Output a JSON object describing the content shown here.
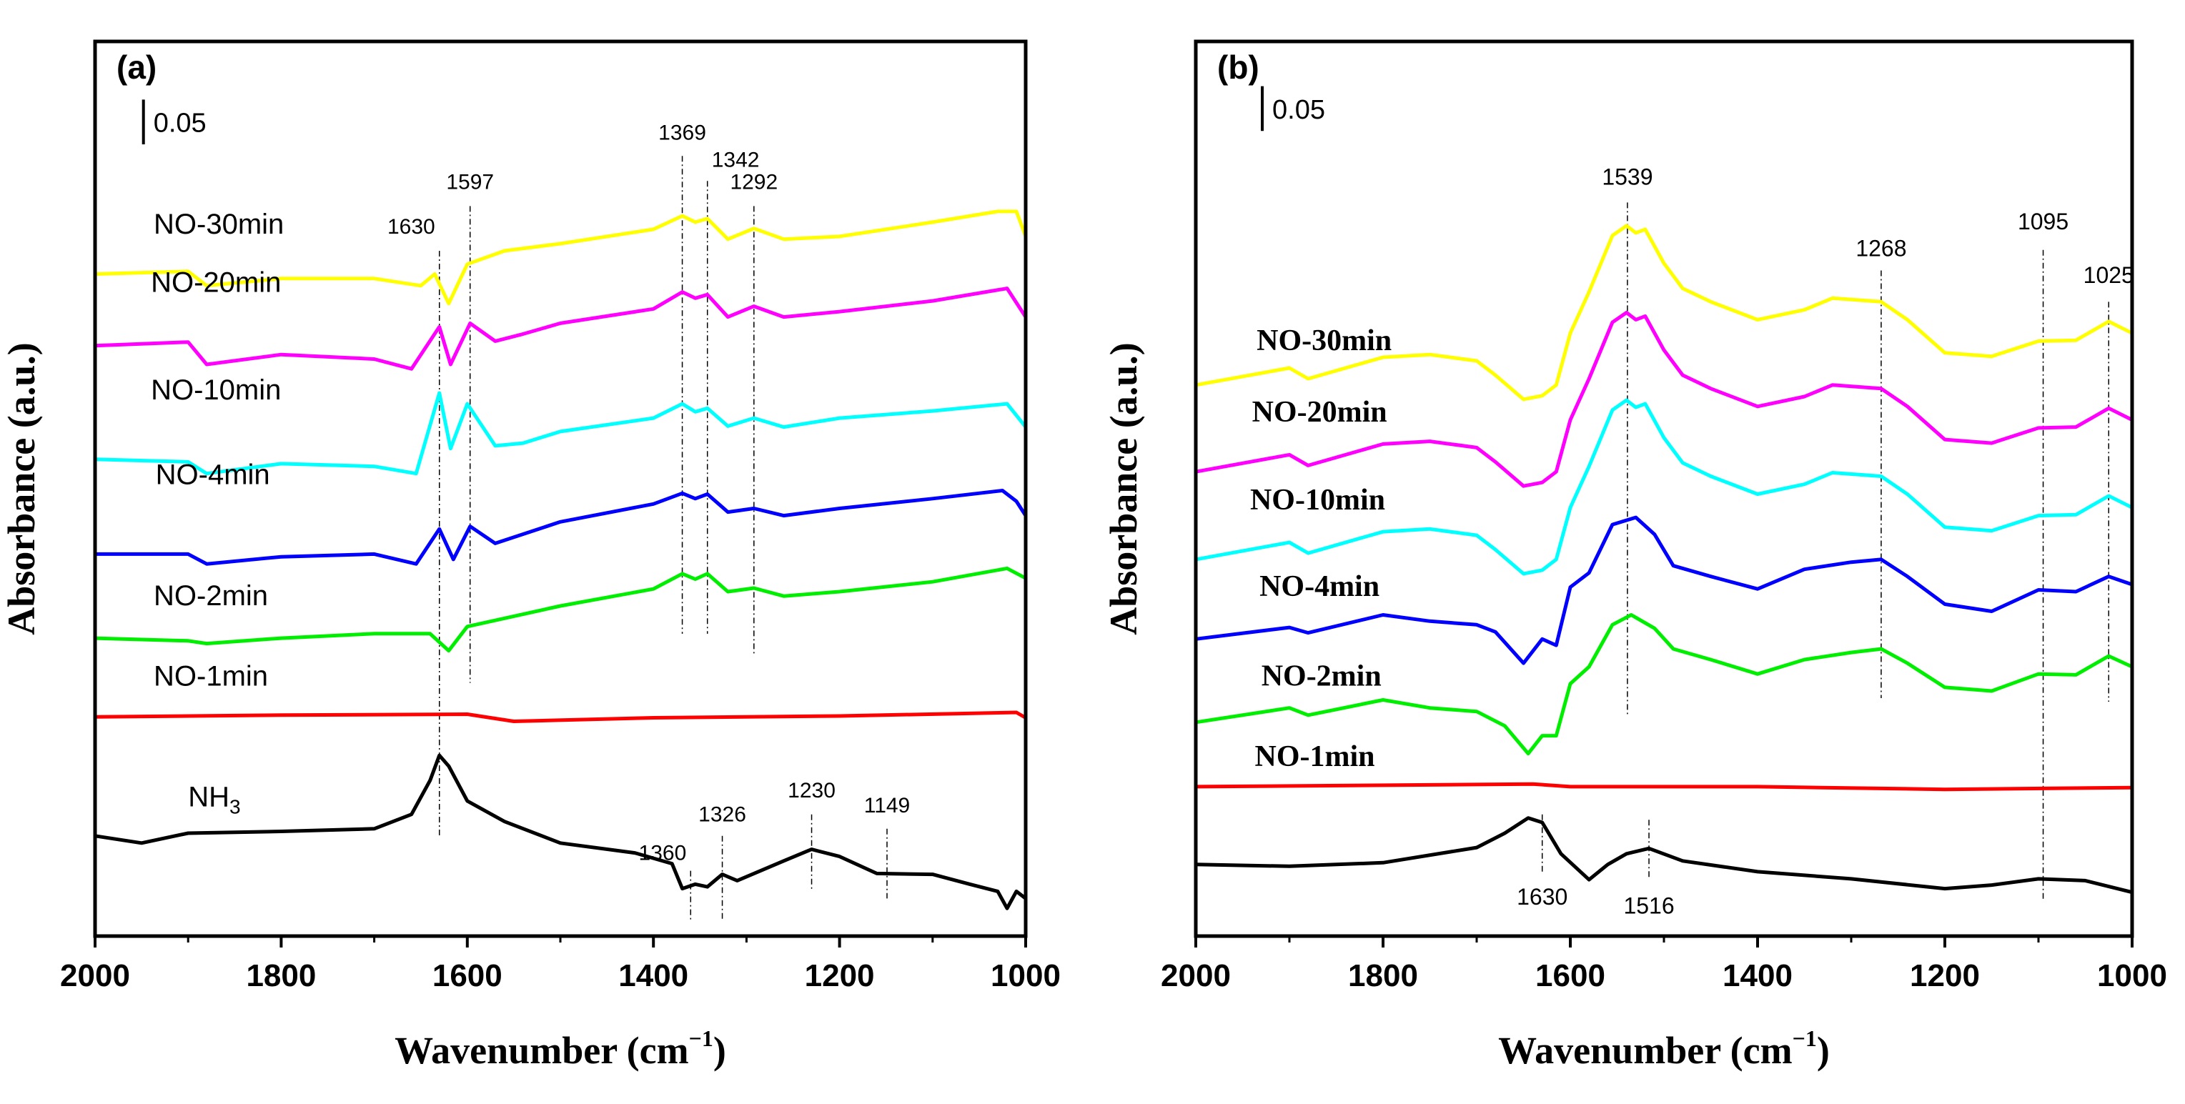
{
  "chart_data": [
    {
      "type": "line",
      "panel_label": "(a)",
      "xlabel": "Wavenumber (cm",
      "xlabel_sup": "-1",
      "xlabel_close": ")",
      "ylabel": "Absorbance (a.u.)",
      "xlim": [
        2000,
        1000
      ],
      "ylim": [
        0,
        1
      ],
      "xticks": [
        "2000",
        "1800",
        "1600",
        "1400",
        "1200",
        "1000"
      ],
      "xtick_values": [
        2000,
        1800,
        1600,
        1400,
        1200,
        1000
      ],
      "scale_bar": {
        "label": "0.05",
        "value": 0.05,
        "x": 1948,
        "y_top": 0.935
      },
      "series": [
        {
          "name": "NO-30min",
          "color": "#ffff00",
          "label_x": 1937,
          "label_y": 0.785,
          "x": [
            2000,
            1900,
            1880,
            1800,
            1700,
            1650,
            1635,
            1620,
            1600,
            1560,
            1500,
            1400,
            1369,
            1355,
            1342,
            1320,
            1292,
            1260,
            1200,
            1100,
            1030,
            1010,
            1000
          ],
          "y": [
            0.74,
            0.743,
            0.727,
            0.735,
            0.735,
            0.727,
            0.74,
            0.707,
            0.751,
            0.766,
            0.774,
            0.79,
            0.805,
            0.798,
            0.802,
            0.779,
            0.791,
            0.779,
            0.782,
            0.798,
            0.81,
            0.81,
            0.782
          ]
        },
        {
          "name": "NO-20min",
          "color": "#ff00ff",
          "label_x": 1940,
          "label_y": 0.72,
          "x": [
            2000,
            1900,
            1880,
            1800,
            1700,
            1660,
            1630,
            1618,
            1597,
            1570,
            1540,
            1500,
            1400,
            1369,
            1355,
            1342,
            1320,
            1292,
            1260,
            1200,
            1100,
            1020,
            1000
          ],
          "y": [
            0.66,
            0.664,
            0.639,
            0.65,
            0.645,
            0.634,
            0.681,
            0.639,
            0.685,
            0.665,
            0.673,
            0.685,
            0.701,
            0.72,
            0.713,
            0.717,
            0.692,
            0.704,
            0.692,
            0.698,
            0.71,
            0.724,
            0.692
          ]
        },
        {
          "name": "NO-10min",
          "color": "#00ffff",
          "label_x": 1940,
          "label_y": 0.6,
          "x": [
            2000,
            1900,
            1880,
            1800,
            1700,
            1655,
            1630,
            1618,
            1600,
            1570,
            1540,
            1500,
            1400,
            1369,
            1355,
            1342,
            1320,
            1292,
            1260,
            1200,
            1100,
            1020,
            1000
          ],
          "y": [
            0.533,
            0.53,
            0.517,
            0.528,
            0.525,
            0.517,
            0.607,
            0.545,
            0.595,
            0.548,
            0.551,
            0.564,
            0.579,
            0.595,
            0.586,
            0.59,
            0.57,
            0.579,
            0.569,
            0.579,
            0.587,
            0.595,
            0.569
          ]
        },
        {
          "name": "NO-4min",
          "color": "#0000ff",
          "label_x": 1935,
          "label_y": 0.505,
          "x": [
            2000,
            1900,
            1880,
            1800,
            1700,
            1655,
            1630,
            1615,
            1597,
            1570,
            1500,
            1400,
            1369,
            1355,
            1342,
            1320,
            1292,
            1260,
            1200,
            1100,
            1025,
            1010,
            1000
          ],
          "y": [
            0.427,
            0.427,
            0.416,
            0.424,
            0.427,
            0.416,
            0.455,
            0.421,
            0.458,
            0.439,
            0.463,
            0.483,
            0.495,
            0.489,
            0.494,
            0.474,
            0.478,
            0.47,
            0.478,
            0.489,
            0.498,
            0.486,
            0.47
          ]
        },
        {
          "name": "NO-2min",
          "color": "#00ee00",
          "label_x": 1937,
          "label_y": 0.37,
          "x": [
            2000,
            1900,
            1880,
            1800,
            1700,
            1640,
            1620,
            1600,
            1500,
            1400,
            1369,
            1355,
            1342,
            1320,
            1292,
            1260,
            1200,
            1100,
            1020,
            1000
          ],
          "y": [
            0.333,
            0.33,
            0.327,
            0.333,
            0.338,
            0.338,
            0.319,
            0.346,
            0.369,
            0.388,
            0.405,
            0.399,
            0.405,
            0.385,
            0.389,
            0.38,
            0.385,
            0.396,
            0.411,
            0.4
          ]
        },
        {
          "name": "NO-1min",
          "color": "#ff0000",
          "label_x": 1937,
          "label_y": 0.28,
          "x": [
            2000,
            1800,
            1600,
            1550,
            1400,
            1200,
            1010,
            1000
          ],
          "y": [
            0.245,
            0.247,
            0.248,
            0.24,
            0.244,
            0.246,
            0.25,
            0.244
          ]
        },
        {
          "name": "NH3",
          "name_main": "NH",
          "name_sub": "3",
          "color": "#000000",
          "label_x": 1900,
          "label_y": 0.145,
          "x": [
            2000,
            1950,
            1900,
            1800,
            1700,
            1660,
            1640,
            1630,
            1620,
            1600,
            1560,
            1500,
            1420,
            1380,
            1369,
            1355,
            1342,
            1326,
            1310,
            1260,
            1230,
            1200,
            1160,
            1100,
            1060,
            1030,
            1020,
            1010,
            1000
          ],
          "y": [
            0.112,
            0.104,
            0.115,
            0.117,
            0.12,
            0.136,
            0.174,
            0.202,
            0.19,
            0.151,
            0.128,
            0.104,
            0.093,
            0.081,
            0.053,
            0.058,
            0.055,
            0.069,
            0.062,
            0.084,
            0.097,
            0.089,
            0.07,
            0.069,
            0.058,
            0.05,
            0.031,
            0.05,
            0.042
          ]
        }
      ],
      "peak_lines": [
        {
          "label": "1630",
          "x": 1630,
          "y0": 0.766,
          "y1": 0.112,
          "label_y": 0.785,
          "anchor": "end"
        },
        {
          "label": "1597",
          "x": 1597,
          "y0": 0.816,
          "y1": 0.283,
          "label_y": 0.835,
          "anchor": "middle"
        },
        {
          "label": "1369",
          "x": 1369,
          "y0": 0.872,
          "y1": 0.338,
          "label_y": 0.89,
          "anchor": "middle"
        },
        {
          "label": "1342",
          "x": 1342,
          "y0": 0.844,
          "y1": 0.338,
          "label_y": 0.86,
          "anchor": "start"
        },
        {
          "label": "1292",
          "x": 1292,
          "y0": 0.816,
          "y1": 0.315,
          "label_y": 0.835,
          "anchor": "middle"
        },
        {
          "label": "1360",
          "x": 1360,
          "y0": 0.073,
          "y1": 0.016,
          "label_y": 0.085,
          "anchor": "end"
        },
        {
          "label": "1326",
          "x": 1326,
          "y0": 0.112,
          "y1": 0.019,
          "label_y": 0.128,
          "anchor": "middle"
        },
        {
          "label": "1230",
          "x": 1230,
          "y0": 0.136,
          "y1": 0.05,
          "label_y": 0.155,
          "anchor": "middle"
        },
        {
          "label": "1149",
          "x": 1149,
          "y0": 0.12,
          "y1": 0.042,
          "label_y": 0.138,
          "anchor": "middle"
        }
      ]
    },
    {
      "type": "line",
      "panel_label": "(b)",
      "xlabel": "Wavenumber (cm",
      "xlabel_sup": "-1",
      "xlabel_close": ")",
      "ylabel": "Absorbance (a.u.)",
      "xlim": [
        2000,
        1000
      ],
      "ylim": [
        0,
        1
      ],
      "xticks": [
        "2000",
        "1800",
        "1600",
        "1400",
        "1200",
        "1000"
      ],
      "xtick_values": [
        2000,
        1800,
        1600,
        1400,
        1200,
        1000
      ],
      "scale_bar": {
        "label": "0.05",
        "value": 0.05,
        "x": 1929,
        "y_top": 0.95
      },
      "series": [
        {
          "name": "NO-30min",
          "color": "#ffff00",
          "label_x": 1935,
          "label_y": 0.655,
          "x": [
            2000,
            1900,
            1880,
            1800,
            1750,
            1700,
            1680,
            1650,
            1630,
            1615,
            1600,
            1580,
            1555,
            1540,
            1530,
            1520,
            1500,
            1480,
            1450,
            1400,
            1350,
            1320,
            1268,
            1240,
            1200,
            1150,
            1100,
            1060,
            1025,
            1000
          ],
          "y": [
            0.616,
            0.635,
            0.623,
            0.647,
            0.65,
            0.643,
            0.627,
            0.6,
            0.604,
            0.616,
            0.674,
            0.72,
            0.783,
            0.794,
            0.786,
            0.79,
            0.752,
            0.724,
            0.709,
            0.689,
            0.7,
            0.713,
            0.709,
            0.689,
            0.652,
            0.648,
            0.665,
            0.666,
            0.687,
            0.674
          ]
        },
        {
          "name": "NO-20min",
          "color": "#ff00ff",
          "label_x": 1940,
          "label_y": 0.575,
          "x": [
            2000,
            1900,
            1880,
            1800,
            1750,
            1700,
            1680,
            1650,
            1630,
            1615,
            1600,
            1580,
            1555,
            1540,
            1530,
            1520,
            1500,
            1480,
            1450,
            1400,
            1350,
            1320,
            1268,
            1240,
            1200,
            1150,
            1100,
            1060,
            1025,
            1000
          ],
          "y": [
            0.519,
            0.538,
            0.526,
            0.55,
            0.553,
            0.546,
            0.53,
            0.503,
            0.507,
            0.519,
            0.577,
            0.623,
            0.686,
            0.697,
            0.689,
            0.693,
            0.655,
            0.627,
            0.612,
            0.592,
            0.603,
            0.616,
            0.612,
            0.592,
            0.555,
            0.551,
            0.568,
            0.569,
            0.59,
            0.577
          ]
        },
        {
          "name": "NO-10min",
          "color": "#00ffff",
          "label_x": 1942,
          "label_y": 0.477,
          "x": [
            2000,
            1900,
            1880,
            1800,
            1750,
            1700,
            1680,
            1650,
            1630,
            1615,
            1600,
            1580,
            1555,
            1540,
            1530,
            1520,
            1500,
            1480,
            1450,
            1400,
            1350,
            1320,
            1268,
            1240,
            1200,
            1150,
            1100,
            1060,
            1025,
            1000
          ],
          "y": [
            0.421,
            0.44,
            0.428,
            0.452,
            0.455,
            0.448,
            0.432,
            0.405,
            0.409,
            0.421,
            0.479,
            0.525,
            0.588,
            0.599,
            0.591,
            0.595,
            0.557,
            0.529,
            0.514,
            0.494,
            0.505,
            0.518,
            0.514,
            0.494,
            0.457,
            0.453,
            0.47,
            0.471,
            0.492,
            0.479
          ]
        },
        {
          "name": "NO-4min",
          "color": "#0000ff",
          "label_x": 1932,
          "label_y": 0.38,
          "x": [
            2000,
            1900,
            1880,
            1800,
            1750,
            1700,
            1680,
            1650,
            1630,
            1615,
            1600,
            1580,
            1555,
            1530,
            1510,
            1490,
            1450,
            1400,
            1350,
            1300,
            1268,
            1240,
            1200,
            1150,
            1100,
            1060,
            1025,
            1000
          ],
          "y": [
            0.332,
            0.345,
            0.339,
            0.359,
            0.352,
            0.348,
            0.34,
            0.305,
            0.332,
            0.325,
            0.39,
            0.406,
            0.46,
            0.468,
            0.449,
            0.414,
            0.402,
            0.388,
            0.41,
            0.418,
            0.421,
            0.402,
            0.371,
            0.363,
            0.387,
            0.385,
            0.402,
            0.393
          ]
        },
        {
          "name": "NO-2min",
          "color": "#00ee00",
          "label_x": 1930,
          "label_y": 0.28,
          "x": [
            2000,
            1900,
            1880,
            1800,
            1750,
            1700,
            1670,
            1645,
            1630,
            1615,
            1600,
            1580,
            1555,
            1535,
            1510,
            1490,
            1450,
            1400,
            1350,
            1300,
            1268,
            1240,
            1200,
            1150,
            1100,
            1060,
            1025,
            1000
          ],
          "y": [
            0.239,
            0.255,
            0.247,
            0.264,
            0.255,
            0.251,
            0.235,
            0.204,
            0.224,
            0.224,
            0.282,
            0.301,
            0.348,
            0.359,
            0.344,
            0.321,
            0.309,
            0.293,
            0.309,
            0.317,
            0.321,
            0.305,
            0.278,
            0.274,
            0.293,
            0.292,
            0.313,
            0.301
          ]
        },
        {
          "name": "NO-1min",
          "color": "#ff0000",
          "label_x": 1937,
          "label_y": 0.19,
          "x": [
            2000,
            1640,
            1600,
            1400,
            1200,
            1000
          ],
          "y": [
            0.167,
            0.17,
            0.167,
            0.167,
            0.164,
            0.166
          ]
        },
        {
          "name": "",
          "color": "#000000",
          "x": [
            2000,
            1900,
            1800,
            1700,
            1670,
            1645,
            1630,
            1610,
            1580,
            1560,
            1540,
            1516,
            1480,
            1400,
            1300,
            1200,
            1150,
            1100,
            1050,
            1000
          ],
          "y": [
            0.08,
            0.078,
            0.082,
            0.099,
            0.115,
            0.132,
            0.127,
            0.092,
            0.063,
            0.08,
            0.092,
            0.098,
            0.084,
            0.072,
            0.064,
            0.053,
            0.057,
            0.064,
            0.062,
            0.049
          ]
        }
      ],
      "peak_lines": [
        {
          "label": "1539",
          "x": 1539,
          "y0": 0.82,
          "y1": 0.247,
          "label_y": 0.84,
          "anchor": "middle"
        },
        {
          "label": "1268",
          "x": 1268,
          "y0": 0.744,
          "y1": 0.266,
          "label_y": 0.76,
          "anchor": "middle"
        },
        {
          "label": "1095",
          "x": 1095,
          "y0": 0.767,
          "y1": 0.041,
          "label_y": 0.79,
          "anchor": "middle"
        },
        {
          "label": "1025",
          "x": 1025,
          "y0": 0.709,
          "y1": 0.262,
          "label_y": 0.73,
          "anchor": "middle"
        },
        {
          "label": "1630",
          "x": 1630,
          "y0": 0.136,
          "y1": 0.072,
          "label_y": 0.035,
          "anchor": "middle"
        },
        {
          "label": "1516",
          "x": 1516,
          "y0": 0.13,
          "y1": 0.064,
          "label_y": 0.025,
          "anchor": "middle"
        }
      ]
    }
  ]
}
